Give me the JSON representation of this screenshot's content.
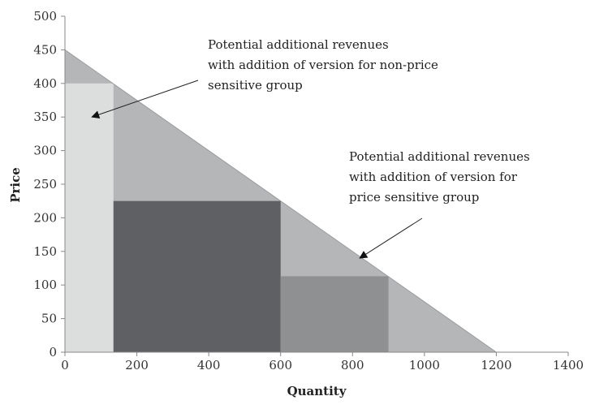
{
  "chart_data": {
    "type": "area",
    "xlabel": "Quantity",
    "ylabel": "Price",
    "xlim": [
      0,
      1400
    ],
    "ylim": [
      0,
      500
    ],
    "xticks": [
      "0",
      "200",
      "400",
      "600",
      "800",
      "1000",
      "1200",
      "1400"
    ],
    "yticks": [
      "0",
      "50",
      "100",
      "150",
      "200",
      "250",
      "300",
      "350",
      "400",
      "450",
      "500"
    ],
    "grid": false,
    "demand_curve": {
      "x": [
        0,
        1200
      ],
      "y": [
        450,
        0
      ]
    },
    "regions": [
      {
        "x0": 0,
        "x1": 135,
        "y0": 0,
        "y1": 400,
        "color": "#dcdedd"
      },
      {
        "x0": 135,
        "x1": 600,
        "y0": 0,
        "y1": 225,
        "color": "#5f6063"
      },
      {
        "x0": 600,
        "x1": 900,
        "y0": 0,
        "y1": 113,
        "color": "#8e9091"
      }
    ],
    "colors": {
      "under_curve": "#b5b6b8",
      "axis": "#888888"
    },
    "annotations": [
      {
        "lines": [
          "Potential additional revenues",
          "with addition of version for non-price",
          "sensitive group"
        ],
        "arrow_to": {
          "x": 75,
          "y": 350
        }
      },
      {
        "lines": [
          "Potential additional revenues",
          "with addition of version for",
          "price sensitive group"
        ],
        "arrow_to": {
          "x": 820,
          "y": 140
        }
      }
    ]
  }
}
